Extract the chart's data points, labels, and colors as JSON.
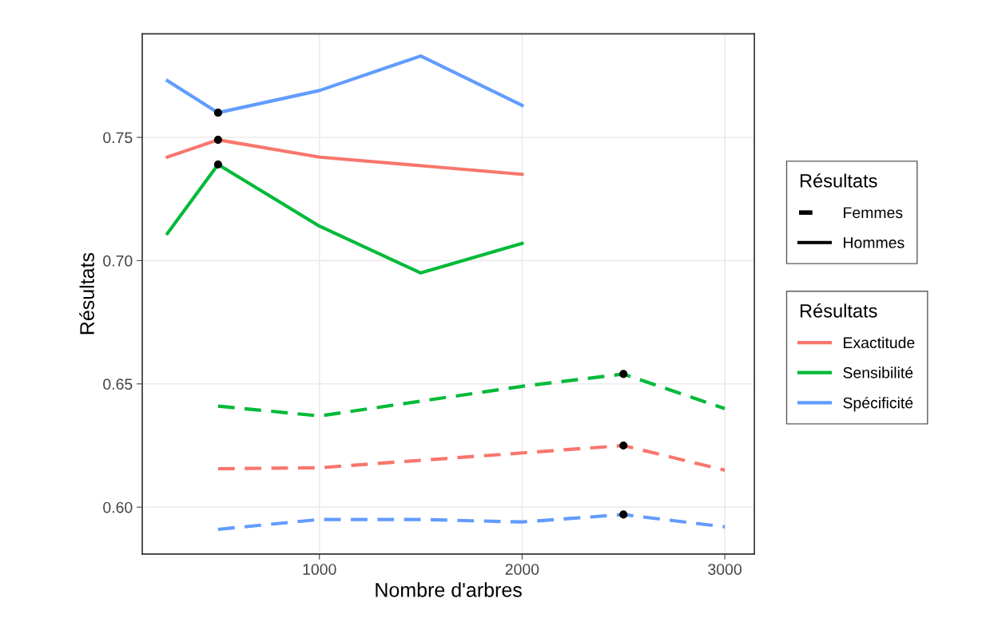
{
  "chart_data": {
    "type": "line",
    "xlabel": "Nombre d'arbres",
    "ylabel": "Résultats",
    "legend_title": [
      "Résultats",
      "Résultats"
    ],
    "xlim": [
      126,
      3146
    ],
    "xticks": [
      1000,
      2000,
      3000
    ],
    "ylim": [
      0.581,
      0.792
    ],
    "yticks": [
      {
        "value": 0.6,
        "label": "0.60"
      },
      {
        "value": 0.65,
        "label": "0.65"
      },
      {
        "value": 0.7,
        "label": "0.70"
      },
      {
        "value": 0.75,
        "label": "0.75"
      }
    ],
    "grid": true,
    "legend": "right",
    "series": [
      {
        "name": "Exactitude",
        "line_style": "solid",
        "color": "#f8766d",
        "x": [
          250,
          500,
          1000,
          1500,
          2000
        ],
        "values": [
          0.742,
          0.749,
          0.742,
          0.7385,
          0.735
        ]
      },
      {
        "name": "Sensibilité",
        "line_style": "solid",
        "color": "#00ba38",
        "x": [
          250,
          500,
          1000,
          1500,
          2000
        ],
        "values": [
          0.711,
          0.739,
          0.714,
          0.695,
          0.707
        ]
      },
      {
        "name": "Spécificité",
        "line_style": "solid",
        "color": "#619cff",
        "x": [
          250,
          500,
          1000,
          1500,
          2000
        ],
        "values": [
          0.773,
          0.76,
          0.769,
          0.783,
          0.763
        ]
      },
      {
        "line_style": "dashed",
        "color": "#f8766d",
        "x": [
          500,
          1000,
          1500,
          2000,
          2500,
          3000
        ],
        "values": [
          0.6156,
          0.616,
          0.619,
          0.622,
          0.625,
          0.615
        ]
      },
      {
        "line_style": "dashed",
        "color": "#00ba38",
        "x": [
          500,
          1000,
          1500,
          2000,
          2500,
          3000
        ],
        "values": [
          0.641,
          0.637,
          0.643,
          0.649,
          0.654,
          0.64
        ]
      },
      {
        "line_style": "dashed",
        "color": "#619cff",
        "x": [
          500,
          1000,
          1500,
          2000,
          2500,
          3000
        ],
        "values": [
          0.591,
          0.595,
          0.595,
          0.594,
          0.597,
          0.592
        ]
      },
      {
        "name": "Femmes",
        "line_style": "dashed",
        "color": "#000000"
      },
      {
        "name": "Hommes",
        "line_style": "solid",
        "color": "#000000"
      },
      {
        "type": "scatter",
        "marker": "circle",
        "color": "#000000",
        "x": [
          500,
          500,
          500,
          2500,
          2500,
          2500
        ],
        "values": [
          0.749,
          0.739,
          0.76,
          0.625,
          0.654,
          0.597
        ]
      }
    ]
  }
}
